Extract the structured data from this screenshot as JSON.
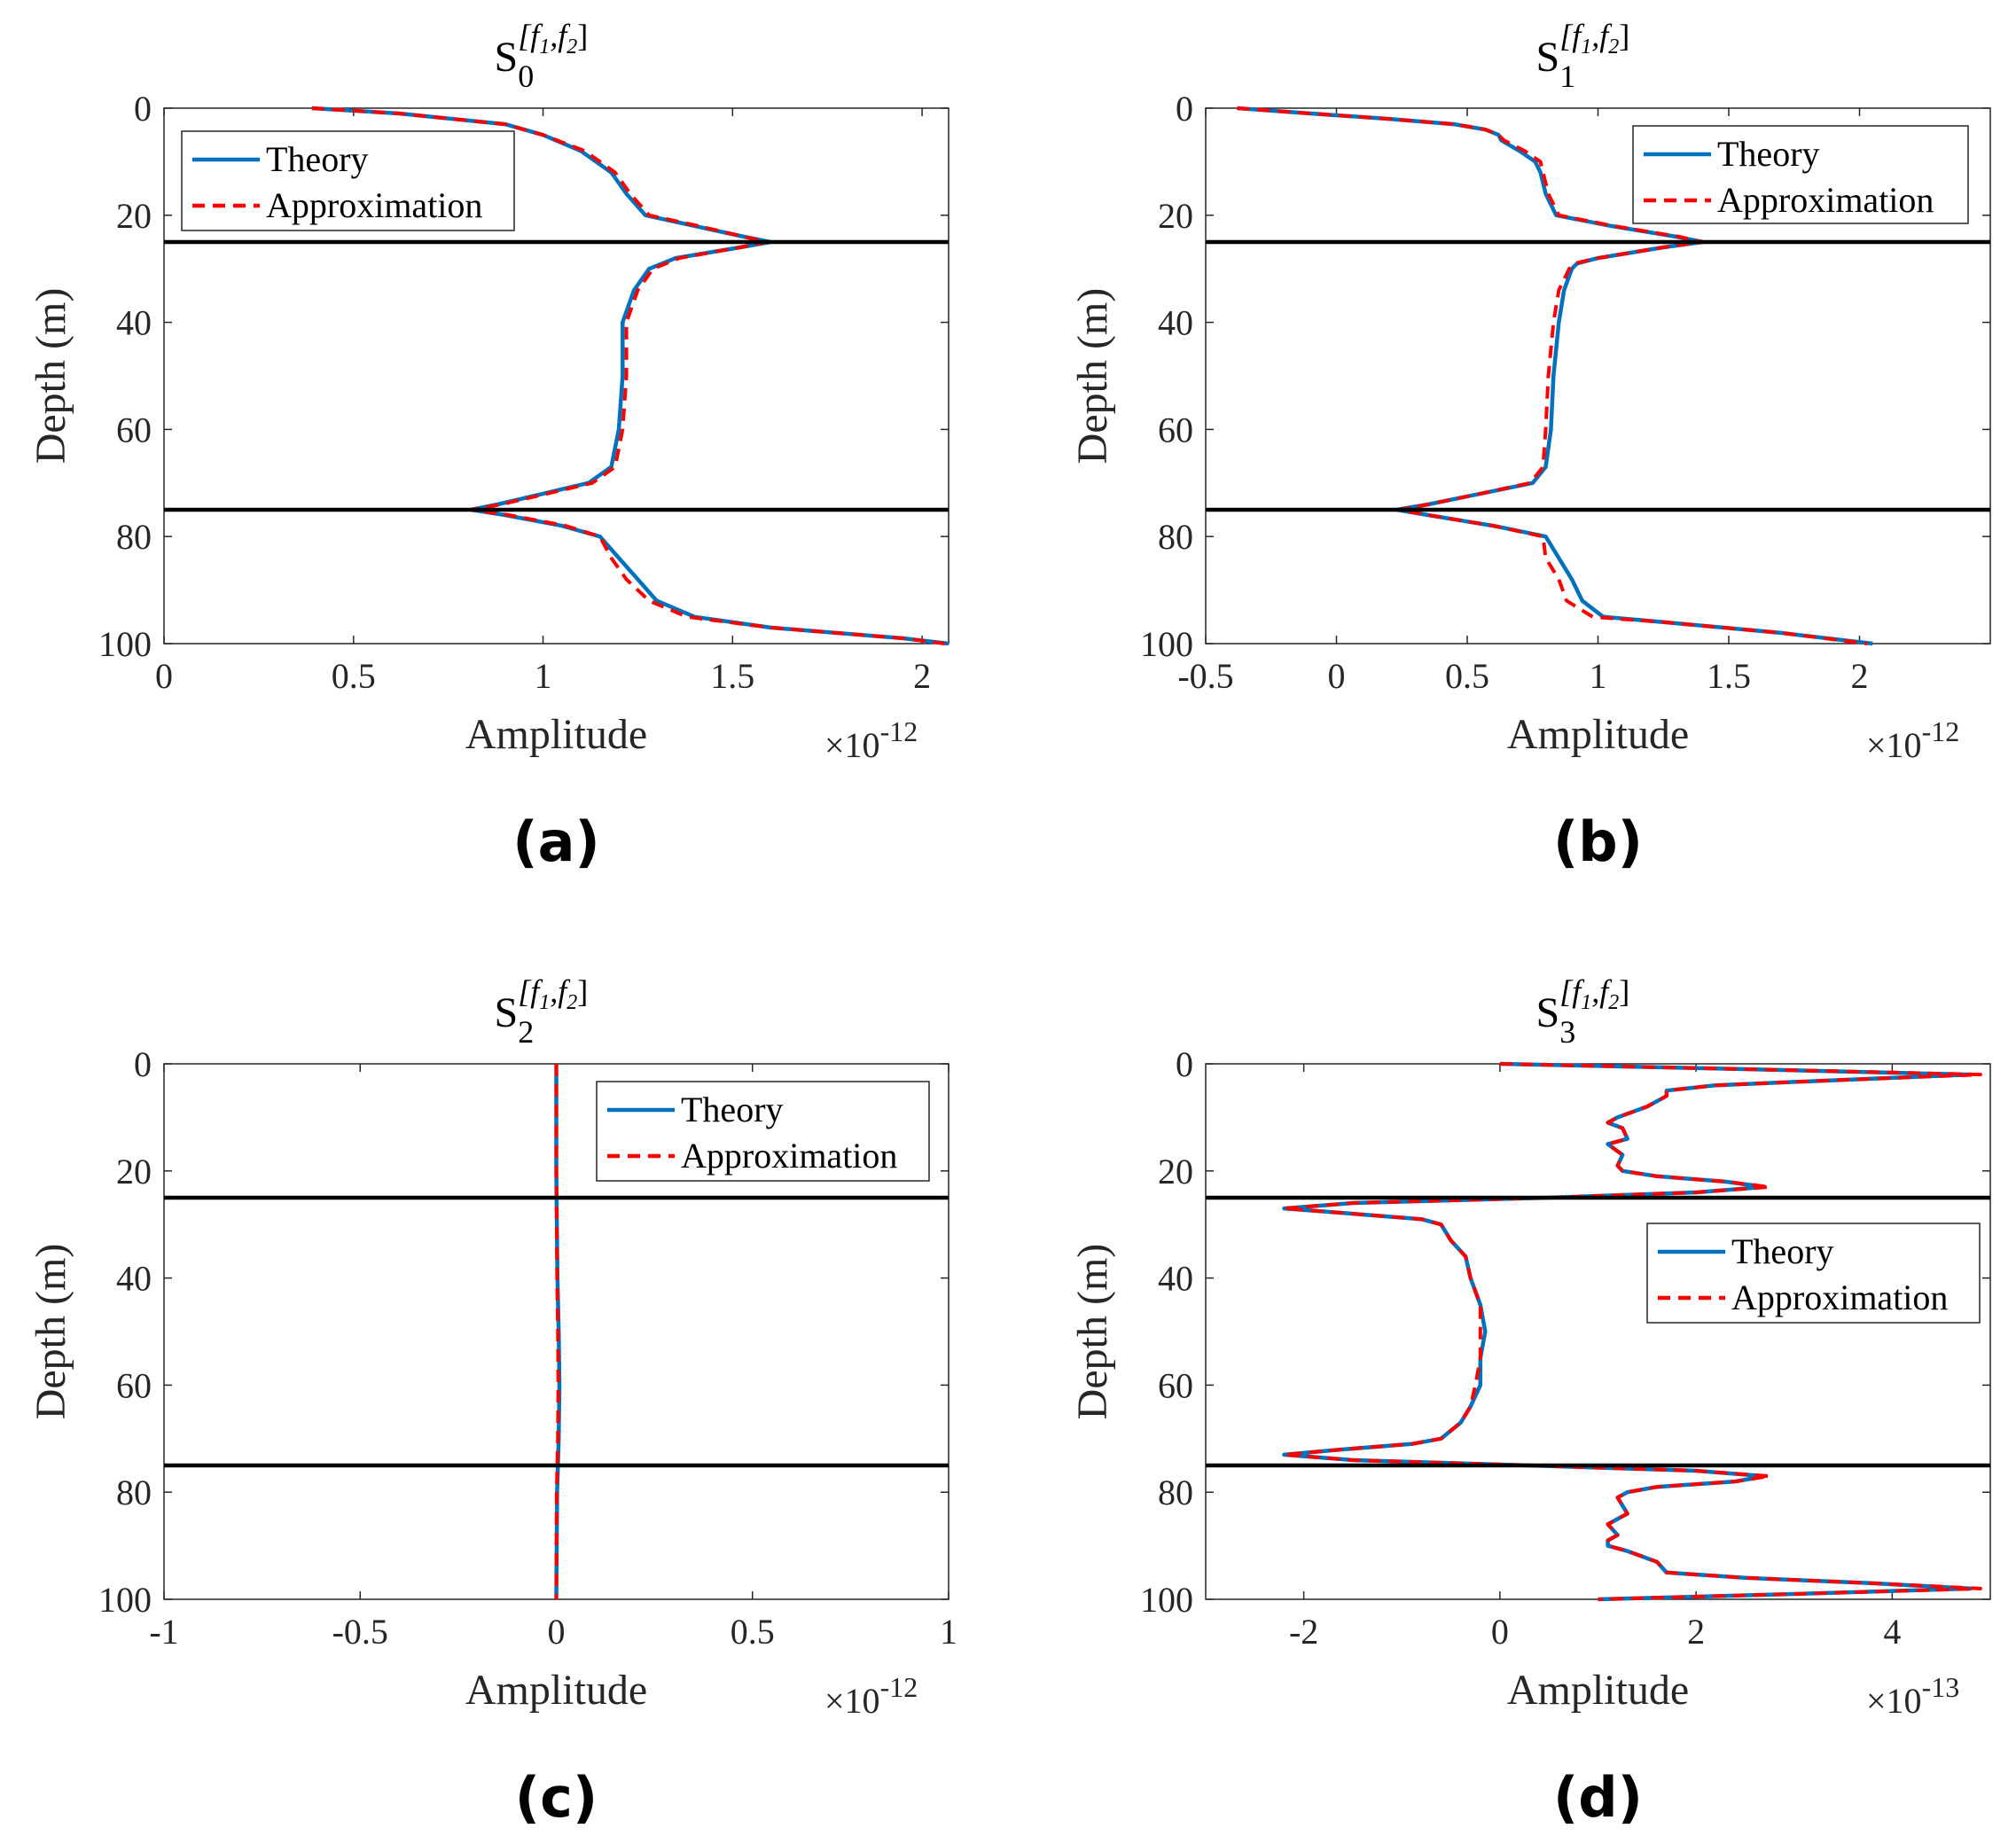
{
  "chart_data": [
    {
      "id": "a",
      "type": "line",
      "title_main": "S",
      "title_sub": "0",
      "title_sup": "[f",
      "title_sup2": "1",
      "title_sup3": ",f",
      "title_sup4": "2",
      "title_sup5": "]",
      "xlabel": "Amplitude",
      "ylabel": "Depth (m)",
      "x_exponent_base": "×10",
      "x_exponent_power": "-12",
      "caption": "(a)",
      "xlim": [
        0,
        2.07
      ],
      "ylim": [
        0,
        100
      ],
      "xticks": [
        0,
        0.5,
        1,
        1.5,
        2
      ],
      "xtick_labels": [
        "0",
        "0.5",
        "1",
        "1.5",
        "2"
      ],
      "yticks": [
        0,
        20,
        40,
        60,
        80,
        100
      ],
      "ytick_labels": [
        "0",
        "20",
        "40",
        "60",
        "80",
        "100"
      ],
      "hlines": [
        25,
        75
      ],
      "legend": {
        "position": "top-left",
        "entries": [
          "Theory",
          "Approximation"
        ]
      },
      "series": [
        {
          "name": "Theory",
          "color": "#0072BD",
          "style": "solid",
          "depth": [
            0,
            1,
            3,
            5,
            8,
            12,
            16,
            20,
            22,
            24,
            25,
            26,
            28,
            30,
            34,
            40,
            50,
            60,
            67,
            70,
            72,
            74,
            75,
            76,
            78,
            80,
            84,
            88,
            92,
            95,
            97,
            99,
            100
          ],
          "values": [
            0.39,
            0.62,
            0.9,
            1.0,
            1.1,
            1.18,
            1.22,
            1.27,
            1.4,
            1.53,
            1.6,
            1.52,
            1.35,
            1.28,
            1.24,
            1.21,
            1.21,
            1.2,
            1.18,
            1.12,
            1.0,
            0.88,
            0.81,
            0.9,
            1.05,
            1.15,
            1.2,
            1.25,
            1.3,
            1.4,
            1.6,
            1.95,
            2.07
          ]
        },
        {
          "name": "Approximation",
          "color": "#FF0000",
          "style": "dashed",
          "depth": [
            0,
            1,
            3,
            5,
            8,
            12,
            16,
            20,
            22,
            24,
            25,
            26,
            28,
            30,
            34,
            40,
            50,
            60,
            67,
            70,
            72,
            74,
            75,
            76,
            78,
            80,
            84,
            88,
            92,
            95,
            97,
            99,
            100
          ],
          "values": [
            0.39,
            0.62,
            0.9,
            1.0,
            1.11,
            1.19,
            1.23,
            1.28,
            1.41,
            1.53,
            1.59,
            1.52,
            1.36,
            1.29,
            1.25,
            1.22,
            1.22,
            1.21,
            1.19,
            1.13,
            1.01,
            0.89,
            0.81,
            0.91,
            1.06,
            1.15,
            1.18,
            1.22,
            1.28,
            1.38,
            1.6,
            1.95,
            2.06
          ]
        }
      ]
    },
    {
      "id": "b",
      "type": "line",
      "title_main": "S",
      "title_sub": "1",
      "title_sup": "[f",
      "title_sup2": "1",
      "title_sup3": ",f",
      "title_sup4": "2",
      "title_sup5": "]",
      "xlabel": "Amplitude",
      "ylabel": "Depth (m)",
      "x_exponent_base": "×10",
      "x_exponent_power": "-12",
      "caption": "(b)",
      "xlim": [
        -0.5,
        2.5
      ],
      "ylim": [
        0,
        100
      ],
      "xticks": [
        -0.5,
        0,
        0.5,
        1,
        1.5,
        2
      ],
      "xtick_labels": [
        "-0.5",
        "0",
        "0.5",
        "1",
        "1.5",
        "2"
      ],
      "yticks": [
        0,
        20,
        40,
        60,
        80,
        100
      ],
      "ytick_labels": [
        "0",
        "20",
        "40",
        "60",
        "80",
        "100"
      ],
      "hlines": [
        25,
        75
      ],
      "legend": {
        "position": "top-right",
        "entries": [
          "Theory",
          "Approximation"
        ]
      },
      "series": [
        {
          "name": "Theory",
          "color": "#0072BD",
          "style": "solid",
          "depth": [
            0,
            1,
            2,
            3,
            4,
            5,
            6,
            8,
            10,
            12,
            16,
            20,
            22,
            24,
            25,
            26,
            28,
            29,
            30,
            34,
            40,
            50,
            60,
            67,
            70,
            72,
            74,
            75,
            76,
            78,
            80,
            84,
            88,
            92,
            95,
            96,
            98,
            100
          ],
          "values": [
            -0.38,
            -0.1,
            0.2,
            0.45,
            0.57,
            0.62,
            0.63,
            0.7,
            0.76,
            0.78,
            0.8,
            0.84,
            1.05,
            1.3,
            1.4,
            1.25,
            1.0,
            0.92,
            0.9,
            0.87,
            0.85,
            0.83,
            0.82,
            0.8,
            0.75,
            0.55,
            0.35,
            0.23,
            0.35,
            0.6,
            0.8,
            0.85,
            0.9,
            0.94,
            1.02,
            1.25,
            1.7,
            2.05
          ]
        },
        {
          "name": "Approximation",
          "color": "#FF0000",
          "style": "dashed",
          "depth": [
            0,
            1,
            2,
            3,
            4,
            5,
            6,
            8,
            10,
            12,
            16,
            20,
            22,
            24,
            25,
            26,
            28,
            29,
            30,
            34,
            40,
            50,
            60,
            67,
            70,
            72,
            74,
            75,
            76,
            78,
            80,
            84,
            88,
            92,
            95,
            96,
            98,
            100
          ],
          "values": [
            -0.38,
            -0.1,
            0.2,
            0.45,
            0.57,
            0.62,
            0.64,
            0.72,
            0.78,
            0.79,
            0.81,
            0.85,
            1.06,
            1.31,
            1.4,
            1.25,
            1.0,
            0.91,
            0.89,
            0.85,
            0.83,
            0.81,
            0.8,
            0.79,
            0.74,
            0.55,
            0.35,
            0.24,
            0.35,
            0.6,
            0.79,
            0.8,
            0.85,
            0.88,
            0.98,
            1.25,
            1.7,
            2.03
          ]
        }
      ]
    },
    {
      "id": "c",
      "type": "line",
      "title_main": "S",
      "title_sub": "2",
      "title_sup": "[f",
      "title_sup2": "1",
      "title_sup3": ",f",
      "title_sup4": "2",
      "title_sup5": "]",
      "xlabel": "Amplitude",
      "ylabel": "Depth (m)",
      "x_exponent_base": "×10",
      "x_exponent_power": "-12",
      "caption": "(c)",
      "xlim": [
        -1,
        1
      ],
      "ylim": [
        0,
        100
      ],
      "xticks": [
        -1,
        -0.5,
        0,
        0.5,
        1
      ],
      "xtick_labels": [
        "-1",
        "-0.5",
        "0",
        "0.5",
        "1"
      ],
      "yticks": [
        0,
        20,
        40,
        60,
        80,
        100
      ],
      "ytick_labels": [
        "0",
        "20",
        "40",
        "60",
        "80",
        "100"
      ],
      "hlines": [
        25,
        75
      ],
      "legend": {
        "position": "top-right",
        "entries": [
          "Theory",
          "Approximation"
        ]
      },
      "series": [
        {
          "name": "Theory",
          "color": "#0072BD",
          "style": "solid",
          "depth": [
            0,
            20,
            40,
            50,
            60,
            70,
            80,
            100
          ],
          "values": [
            0.0,
            0.0,
            0.003,
            0.006,
            0.008,
            0.006,
            0.002,
            0.0
          ]
        },
        {
          "name": "Approximation",
          "color": "#FF0000",
          "style": "dashed",
          "depth": [
            0,
            20,
            40,
            50,
            60,
            70,
            80,
            100
          ],
          "values": [
            0.0,
            0.0,
            0.002,
            0.004,
            0.005,
            0.004,
            0.001,
            0.0
          ]
        }
      ]
    },
    {
      "id": "d",
      "type": "line",
      "title_main": "S",
      "title_sub": "3",
      "title_sup": "[f",
      "title_sup2": "1",
      "title_sup3": ",f",
      "title_sup4": "2",
      "title_sup5": "]",
      "xlabel": "Amplitude",
      "ylabel": "Depth (m)",
      "x_exponent_base": "×10",
      "x_exponent_power": "-13",
      "caption": "(d)",
      "xlim": [
        -3,
        5
      ],
      "ylim": [
        0,
        100
      ],
      "xticks": [
        -2,
        0,
        2,
        4
      ],
      "xtick_labels": [
        "-2",
        "0",
        "2",
        "4"
      ],
      "yticks": [
        0,
        20,
        40,
        60,
        80,
        100
      ],
      "ytick_labels": [
        "0",
        "20",
        "40",
        "60",
        "80",
        "100"
      ],
      "hlines": [
        25,
        75
      ],
      "legend": {
        "position": "right",
        "entries": [
          "Theory",
          "Approximation"
        ]
      },
      "series": [
        {
          "name": "Theory",
          "color": "#0072BD",
          "style": "solid",
          "depth": [
            0,
            1,
            2,
            3,
            4,
            5,
            6,
            8,
            10,
            11,
            12,
            14,
            15,
            17,
            19,
            20,
            21,
            22,
            23,
            24,
            25,
            26,
            27,
            28,
            29,
            30,
            33,
            36,
            40,
            45,
            50,
            55,
            60,
            64,
            67,
            70,
            71,
            72,
            73,
            74,
            75,
            76,
            77,
            78,
            79,
            80,
            81,
            84,
            86,
            88,
            89,
            90,
            91,
            93,
            95,
            96,
            97,
            98,
            99,
            100
          ],
          "values": [
            0.0,
            2.5,
            4.8,
            3.5,
            2.2,
            1.7,
            1.7,
            1.5,
            1.2,
            1.1,
            1.25,
            1.3,
            1.1,
            1.25,
            1.2,
            1.25,
            1.6,
            2.3,
            2.7,
            2.0,
            0.5,
            -1.5,
            -2.2,
            -1.5,
            -0.8,
            -0.6,
            -0.5,
            -0.35,
            -0.3,
            -0.2,
            -0.15,
            -0.2,
            -0.2,
            -0.3,
            -0.4,
            -0.6,
            -0.9,
            -1.6,
            -2.2,
            -1.5,
            0.3,
            2.0,
            2.7,
            2.4,
            1.6,
            1.3,
            1.2,
            1.3,
            1.1,
            1.2,
            1.1,
            1.1,
            1.3,
            1.6,
            1.7,
            2.5,
            3.8,
            4.8,
            3.0,
            1.0
          ]
        },
        {
          "name": "Approximation",
          "color": "#FF0000",
          "style": "dashed",
          "depth": [
            0,
            1,
            2,
            3,
            4,
            5,
            6,
            8,
            10,
            11,
            12,
            14,
            15,
            17,
            19,
            20,
            21,
            22,
            23,
            24,
            25,
            26,
            27,
            28,
            29,
            30,
            33,
            36,
            40,
            45,
            50,
            55,
            60,
            64,
            67,
            70,
            71,
            72,
            73,
            74,
            75,
            76,
            77,
            78,
            79,
            80,
            81,
            84,
            86,
            88,
            89,
            90,
            91,
            93,
            95,
            96,
            97,
            98,
            99,
            100
          ],
          "values": [
            0.0,
            2.5,
            4.9,
            3.5,
            2.2,
            1.7,
            1.7,
            1.5,
            1.2,
            1.1,
            1.25,
            1.3,
            1.1,
            1.25,
            1.2,
            1.25,
            1.6,
            2.3,
            2.75,
            2.0,
            0.5,
            -1.5,
            -2.2,
            -1.5,
            -0.8,
            -0.6,
            -0.5,
            -0.35,
            -0.3,
            -0.2,
            -0.2,
            -0.2,
            -0.25,
            -0.3,
            -0.4,
            -0.6,
            -0.9,
            -1.6,
            -2.2,
            -1.5,
            0.3,
            2.0,
            2.75,
            2.4,
            1.6,
            1.3,
            1.2,
            1.3,
            1.1,
            1.2,
            1.1,
            1.1,
            1.3,
            1.6,
            1.7,
            2.5,
            3.8,
            4.9,
            3.0,
            1.0
          ]
        }
      ]
    }
  ]
}
